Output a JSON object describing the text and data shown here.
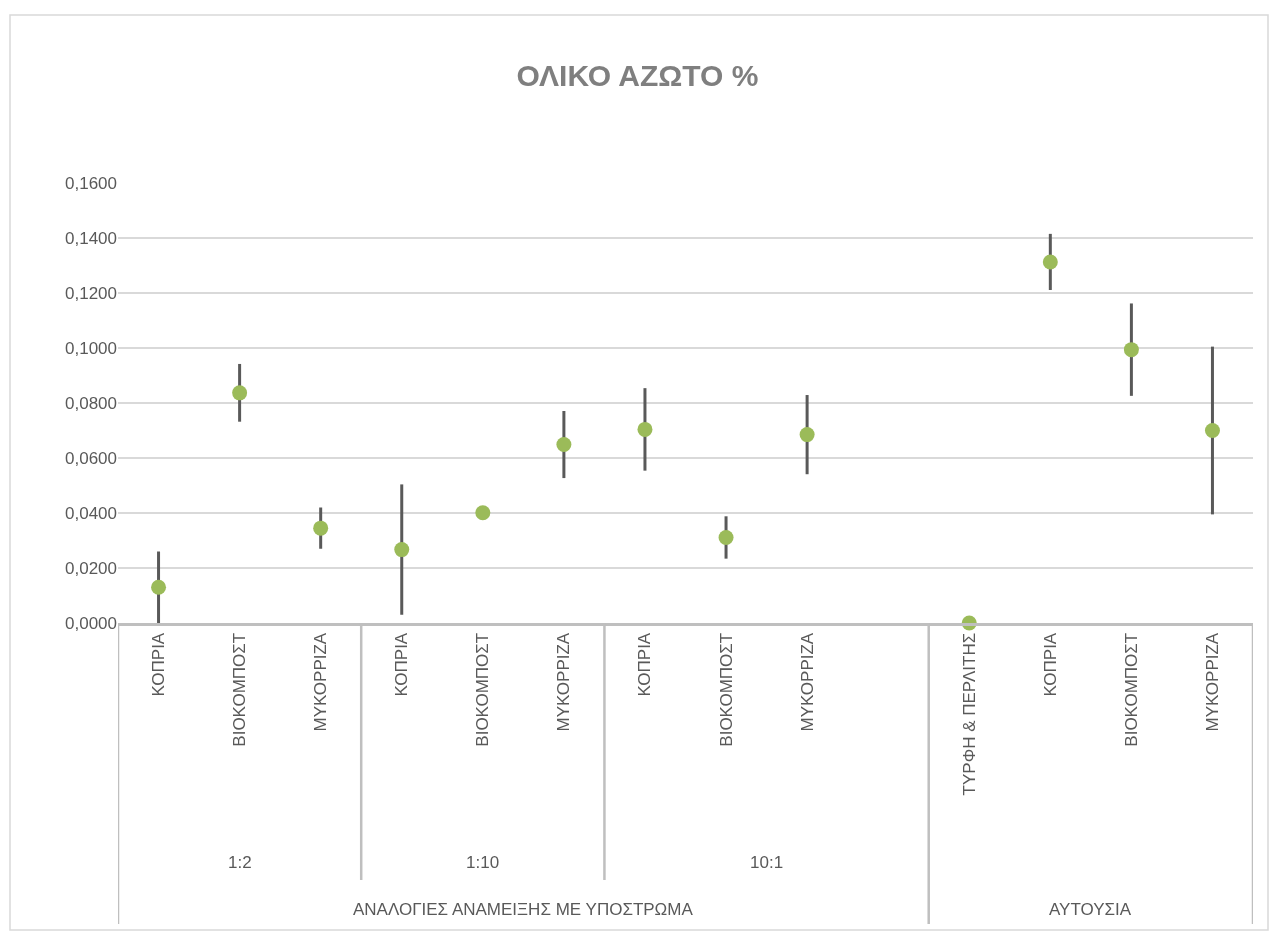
{
  "chart_data": {
    "type": "scatter",
    "title": "ΟΛΙΚΟ ΑΖΩΤΟ %",
    "categories": [
      "ΚΟΠΡΙΑ",
      "ΒΙΟΚΟΜΠΟΣΤ",
      "ΜΥΚΟΡΡΙΖΑ",
      "ΚΟΠΡΙΑ",
      "ΒΙΟΚΟΜΠΟΣΤ",
      "ΜΥΚΟΡΡΙΖΑ",
      "ΚΟΠΡΙΑ",
      "ΒΙΟΚΟΜΠΟΣΤ",
      "ΜΥΚΟΡΡΙΖΑ",
      null,
      "ΤΥΡΦΗ & ΠΕΡΛΙΤΗΣ",
      "ΚΟΠΡΙΑ",
      "ΒΙΟΚΟΜΠΟΣΤ",
      "ΜΥΚΟΡΡΙΖΑ"
    ],
    "series": [
      {
        "color": "#9bbb59",
        "values": [
          0.013,
          0.0837,
          0.0345,
          0.0267,
          0.0401,
          0.0649,
          0.0704,
          0.0311,
          0.0685,
          null,
          0.0,
          0.1313,
          0.0994,
          0.07
        ],
        "errors": [
          0.013,
          0.0105,
          0.0075,
          0.0237,
          null,
          0.0122,
          0.015,
          0.0077,
          0.0144,
          null,
          null,
          0.0102,
          0.0168,
          0.0305
        ]
      }
    ],
    "annotations": [
      "1:2",
      "1:10",
      "10:1",
      "ΑΝΑΛΟΓΙΕΣ ΑΝΑΜΕΙΞΗΣ ΜΕ ΥΠΟΣΤΡΩΜΑ",
      "ΑΥΤΟΥΣΙΑ"
    ],
    "ylim": [
      0,
      0.16
    ],
    "yticks": [
      {
        "value": 0,
        "label": "0,0000"
      },
      {
        "value": 0.02,
        "label": "0,0200"
      },
      {
        "value": 0.04,
        "label": "0,0400"
      },
      {
        "value": 0.06,
        "label": "0,0600"
      },
      {
        "value": 0.08,
        "label": "0,0800"
      },
      {
        "value": 0.1,
        "label": "0,1000"
      },
      {
        "value": 0.12,
        "label": "0,1200"
      },
      {
        "value": 0.14,
        "label": "0,1400"
      },
      {
        "value": 0.16,
        "label": "0,1600"
      }
    ],
    "grid": "y",
    "marker": "circle"
  }
}
